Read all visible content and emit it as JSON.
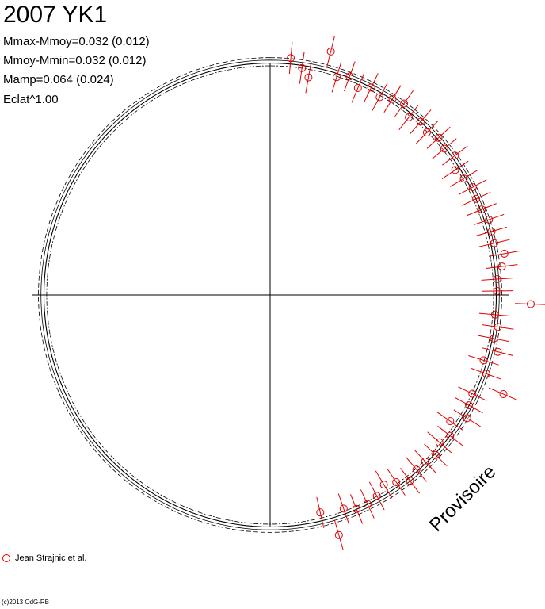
{
  "header": {
    "title": "2007 YK1",
    "stats": [
      "Mmax-Mmoy=0.032 (0.012)",
      "Mmoy-Mmin=0.032 (0.012)",
      "Mamp=0.064 (0.024)",
      "Eclat^1.00"
    ]
  },
  "legend": {
    "label": "Jean Strajnic et al.",
    "marker_color": "#e00000"
  },
  "watermark": "Provisoire",
  "copyright": "(c)2013 OdG-RB",
  "chart_data": {
    "type": "polar-lightcurve",
    "object": "2007 YK1",
    "mean_curve_color": "#000000",
    "observation_color": "#e00000",
    "observer": "Jean Strajnic et al.",
    "observations": [
      [
        1.038,
        5,
        20
      ],
      [
        1.0,
        8,
        20
      ],
      [
        0.964,
        10,
        20
      ],
      [
        1.095,
        14,
        20
      ],
      [
        0.994,
        17,
        20
      ],
      [
        1.015,
        20,
        20
      ],
      [
        0.981,
        23,
        20
      ],
      [
        1.007,
        26,
        20
      ],
      [
        0.987,
        29,
        20
      ],
      [
        1.009,
        32,
        20
      ],
      [
        1.02,
        35,
        20
      ],
      [
        0.984,
        38,
        20
      ],
      [
        1.002,
        41,
        20
      ],
      [
        0.986,
        44,
        20
      ],
      [
        1.006,
        47,
        20
      ],
      [
        0.993,
        50,
        20
      ],
      [
        1.011,
        53,
        20
      ],
      [
        0.975,
        56,
        20
      ],
      [
        0.987,
        59,
        20
      ],
      [
        1.002,
        62,
        20
      ],
      [
        0.993,
        65,
        20
      ],
      [
        0.997,
        68,
        20
      ],
      [
        1.011,
        71,
        20
      ],
      [
        1.006,
        74,
        20
      ],
      [
        1.005,
        77,
        20
      ],
      [
        1.039,
        80,
        20
      ],
      [
        1.02,
        83,
        20
      ],
      [
        0.994,
        86,
        20
      ],
      [
        0.993,
        89,
        20
      ],
      [
        1.139,
        92,
        20
      ],
      [
        0.986,
        95,
        20
      ],
      [
        1.005,
        98,
        20
      ],
      [
        0.995,
        101,
        20
      ],
      [
        1.025,
        104,
        20
      ],
      [
        0.975,
        107,
        20
      ],
      [
        1.005,
        110,
        20
      ],
      [
        1.107,
        113,
        20
      ],
      [
        0.983,
        116,
        20
      ],
      [
        0.993,
        119,
        20
      ],
      [
        1.015,
        122,
        20
      ],
      [
        0.96,
        125,
        20
      ],
      [
        0.998,
        128,
        20
      ],
      [
        0.98,
        131,
        20
      ],
      [
        1.005,
        134,
        20
      ],
      [
        0.993,
        137,
        20
      ],
      [
        0.994,
        140,
        20
      ],
      [
        1.015,
        143,
        20
      ],
      [
        0.985,
        146,
        20
      ],
      [
        0.965,
        149,
        20
      ],
      [
        0.993,
        152,
        20
      ],
      [
        1.006,
        155,
        20
      ],
      [
        1.007,
        158,
        20
      ],
      [
        0.986,
        161,
        20
      ],
      [
        1.09,
        164,
        20
      ],
      [
        0.974,
        167,
        20
      ]
    ]
  }
}
